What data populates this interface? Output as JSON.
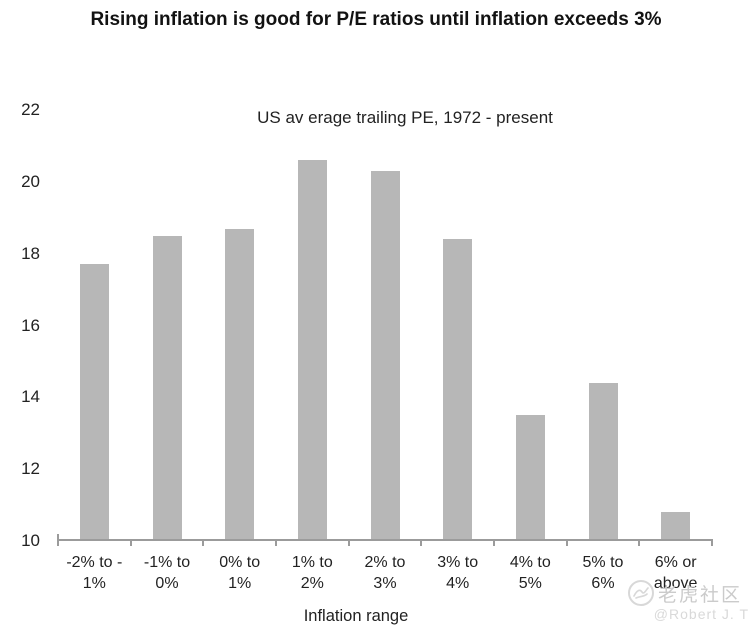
{
  "chart_data": {
    "type": "bar",
    "title": "Rising inflation is good for P/E ratios until inflation exceeds 3%",
    "subtitle": "US av erage trailing PE, 1972 - present",
    "xlabel": "Inflation range",
    "ylabel": "",
    "ylim": [
      10,
      22
    ],
    "yticks": [
      10,
      12,
      14,
      16,
      18,
      20,
      22
    ],
    "grid": false,
    "legend": false,
    "bar_color": "#b7b7b7",
    "axis_color": "#9b9b9b",
    "categories": [
      "-2% to -1%",
      "-1% to 0%",
      "0% to 1%",
      "1% to 2%",
      "2% to 3%",
      "3% to 4%",
      "4% to 5%",
      "5% to 6%",
      "6% or above"
    ],
    "tick_labels": [
      "-2% to -\n1%",
      "-1% to\n0%",
      "0% to\n1%",
      "1% to\n2%",
      "2% to\n3%",
      "3% to\n4%",
      "4% to\n5%",
      "5% to\n6%",
      "6% or\nabove"
    ],
    "values": [
      17.7,
      18.5,
      18.7,
      20.6,
      20.3,
      18.4,
      13.5,
      14.4,
      10.8
    ]
  },
  "watermark": {
    "icon": "scribble-circle-icon",
    "community_text": "老虎社区",
    "handle_text": "@Robert J. T",
    "icon_color": "#d8d8d8",
    "community_color": "#cbcbcb",
    "handle_color": "#d9d9d9"
  }
}
